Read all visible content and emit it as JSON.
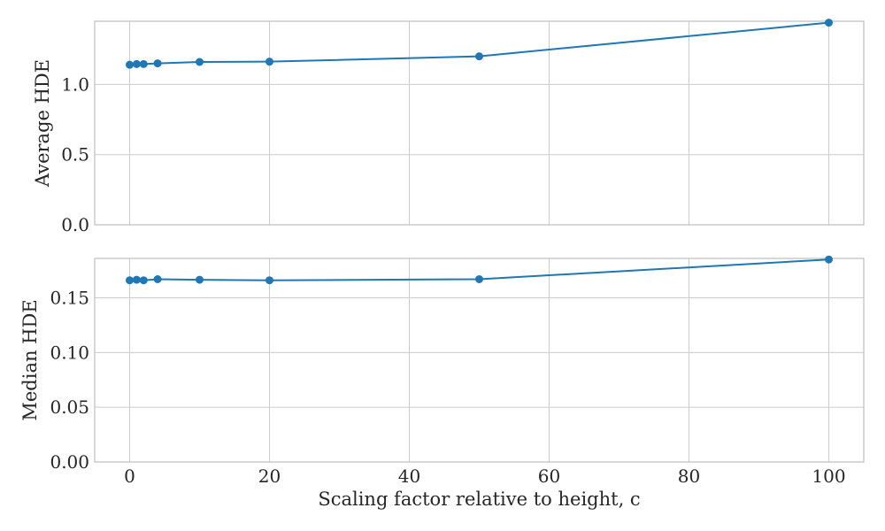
{
  "chart_data": [
    {
      "type": "line",
      "ylabel": "Average HDE",
      "xlabel": "",
      "xlim": [
        -5,
        105
      ],
      "ylim": [
        0,
        1.45
      ],
      "xticks": [
        0,
        20,
        40,
        60,
        80,
        100
      ],
      "yticks": [
        0,
        0.5,
        1.0
      ],
      "ytick_labels": [
        "0.0",
        "0.5",
        "1.0"
      ],
      "grid": true,
      "series": [
        {
          "color": "#1f77b4",
          "x": [
            0,
            1,
            2,
            4,
            10,
            20,
            50,
            100
          ],
          "y": [
            1.14,
            1.145,
            1.145,
            1.15,
            1.16,
            1.162,
            1.2,
            1.44
          ]
        }
      ]
    },
    {
      "type": "line",
      "ylabel": "Median HDE",
      "xlabel": "Scaling factor relative to height, c",
      "xlim": [
        -5,
        105
      ],
      "ylim": [
        0,
        0.186
      ],
      "xticks": [
        0,
        20,
        40,
        60,
        80,
        100
      ],
      "xtick_labels": [
        "0",
        "20",
        "40",
        "60",
        "80",
        "100"
      ],
      "yticks": [
        0,
        0.05,
        0.1,
        0.15
      ],
      "ytick_labels": [
        "0.00",
        "0.05",
        "0.10",
        "0.15"
      ],
      "grid": true,
      "series": [
        {
          "color": "#1f77b4",
          "x": [
            0,
            1,
            2,
            4,
            10,
            20,
            50,
            100
          ],
          "y": [
            0.166,
            0.1665,
            0.166,
            0.167,
            0.1665,
            0.166,
            0.167,
            0.185
          ]
        }
      ]
    }
  ]
}
